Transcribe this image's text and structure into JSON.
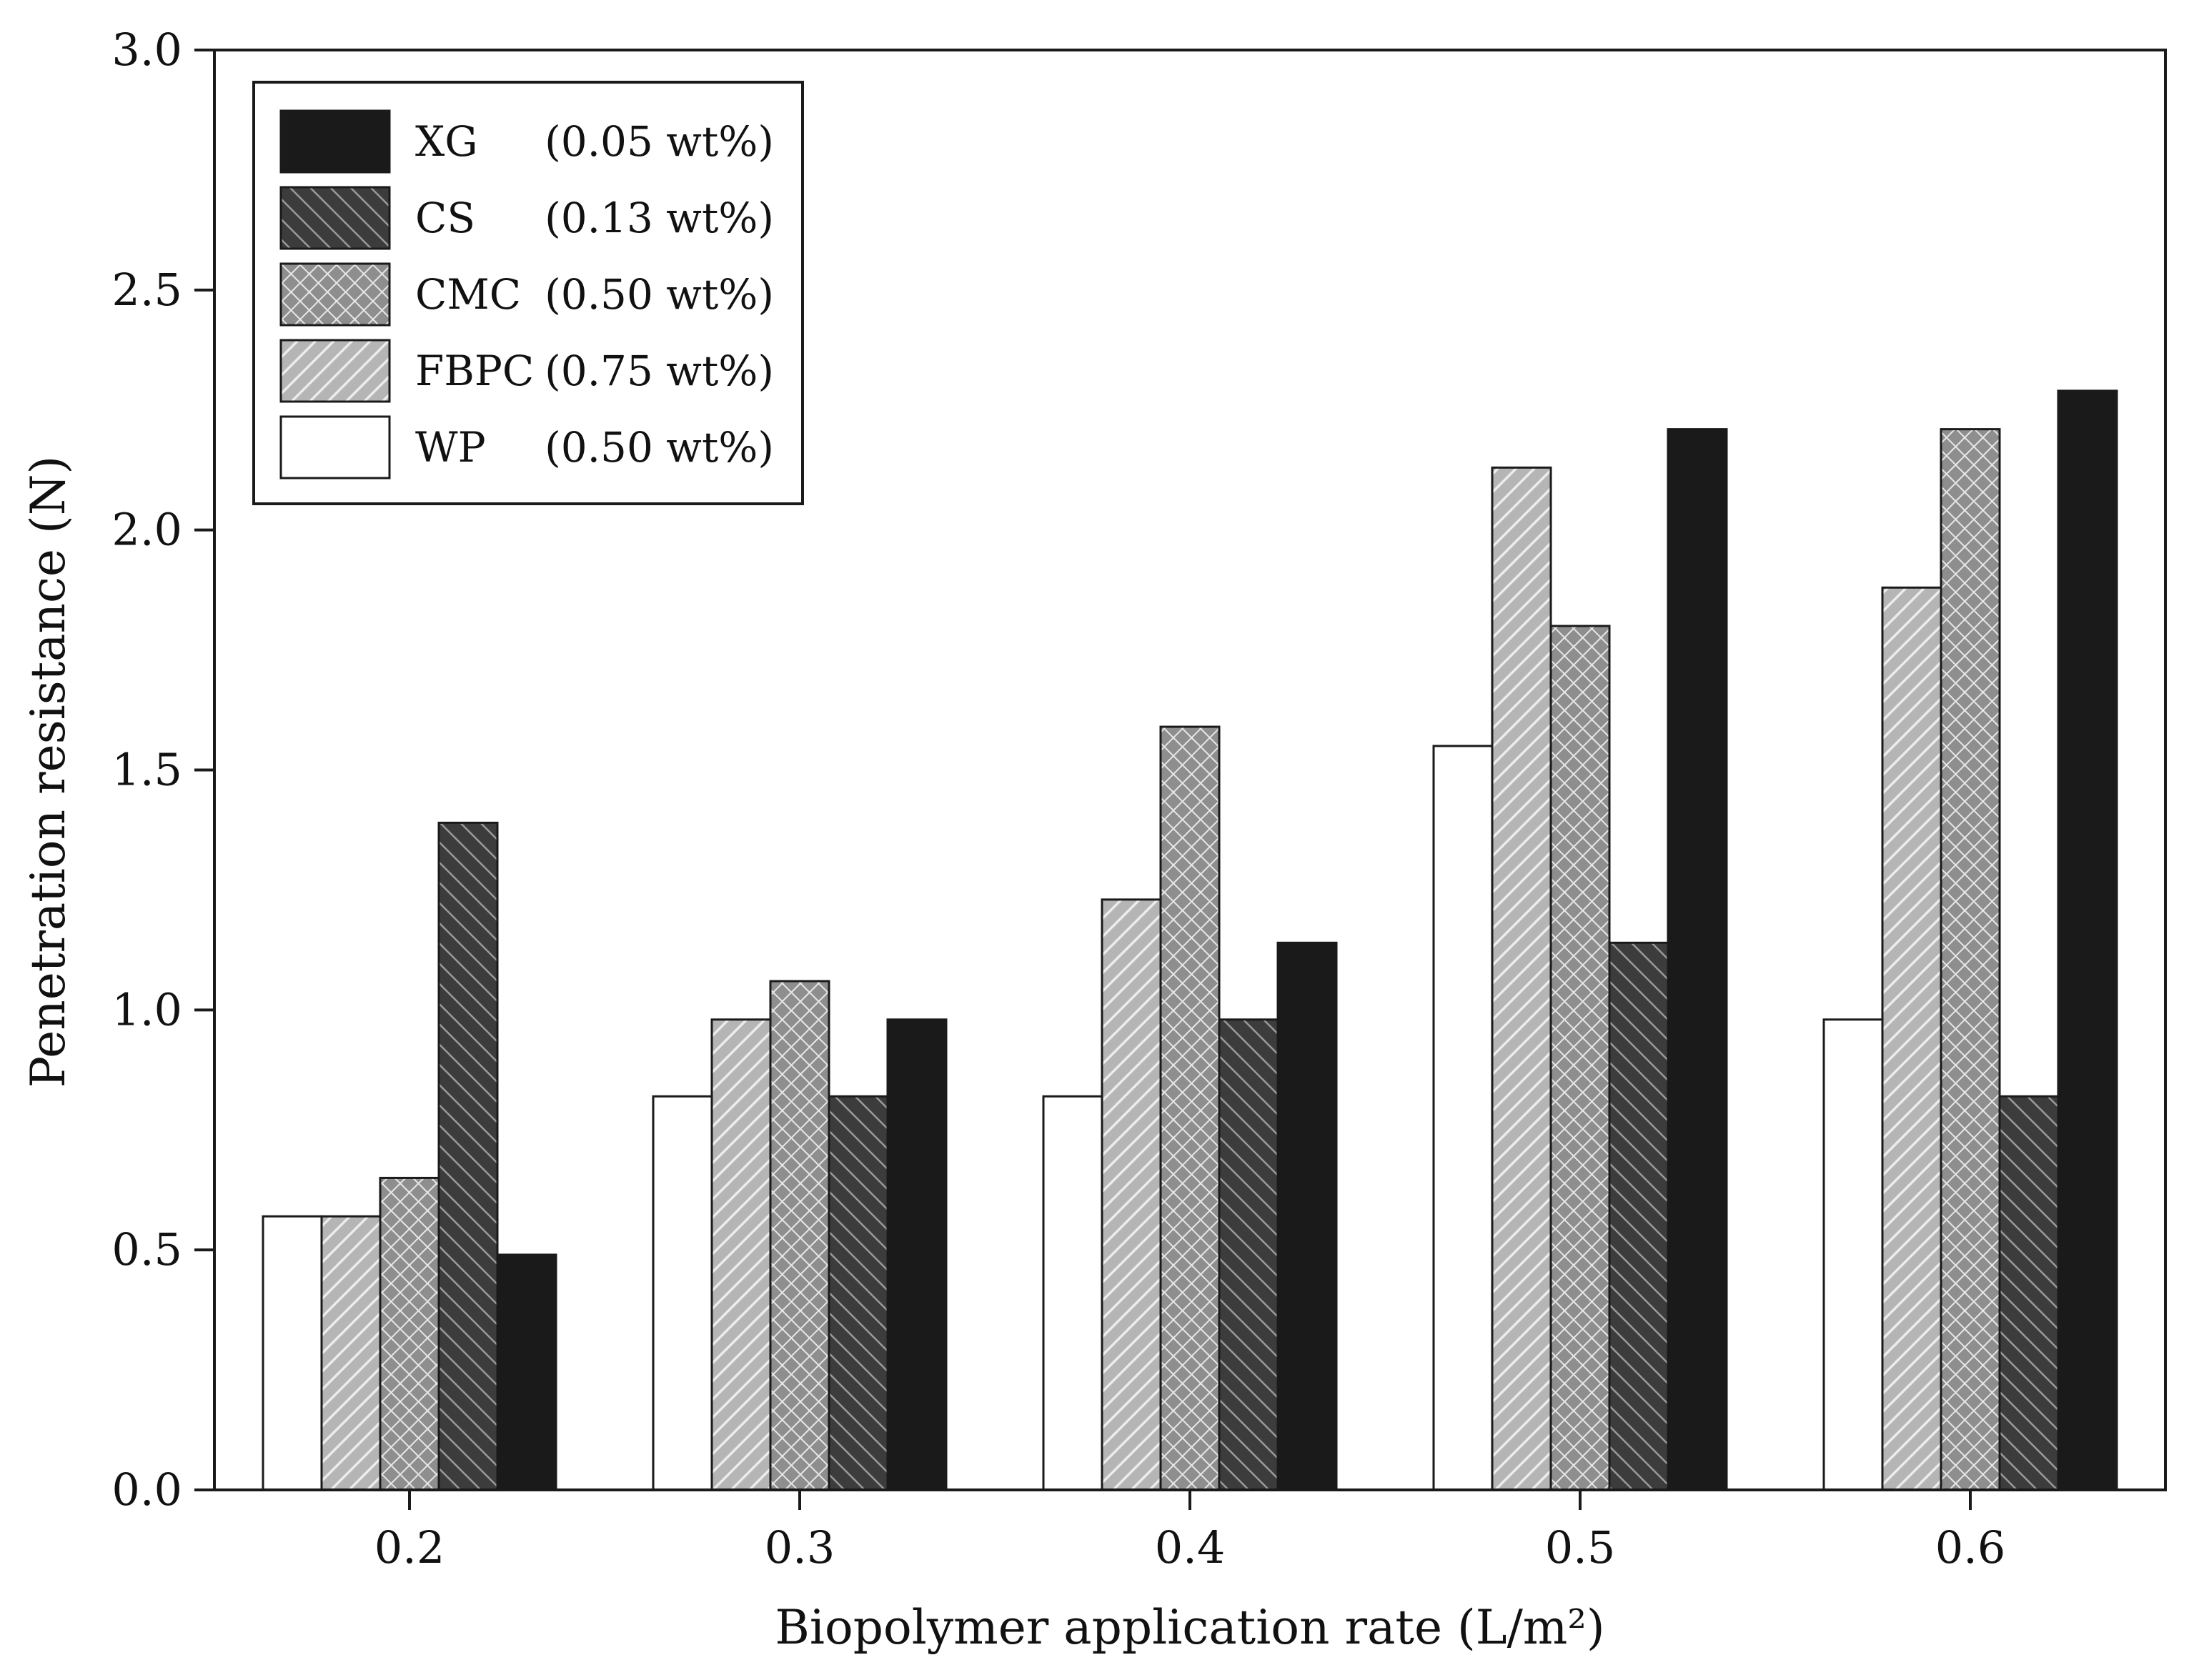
{
  "chart_data": {
    "type": "bar",
    "title": "",
    "xlabel": "Biopolymer application rate (L/m²)",
    "ylabel": "Penetration resistance (N)",
    "ylim": [
      0,
      3.0
    ],
    "yticks": [
      "0.0",
      "0.5",
      "1.0",
      "1.5",
      "2.0",
      "2.5",
      "3.0"
    ],
    "categories": [
      "0.2",
      "0.3",
      "0.4",
      "0.5",
      "0.6"
    ],
    "grid": false,
    "legend_position": "top-left",
    "series": [
      {
        "key": "WP",
        "name": "WP",
        "concentration": "(0.50 wt%)",
        "fill": "#ffffff",
        "pattern": "none",
        "values": [
          0.57,
          0.82,
          0.82,
          1.55,
          0.98
        ]
      },
      {
        "key": "FBPC",
        "name": "FBPC",
        "concentration": "(0.75 wt%)",
        "fill": "#b5b5b5",
        "pattern": "diagonal",
        "values": [
          0.57,
          0.98,
          1.23,
          2.13,
          1.88
        ]
      },
      {
        "key": "CMC",
        "name": "CMC",
        "concentration": "(0.50 wt%)",
        "fill": "#9a9a9a",
        "pattern": "cross",
        "values": [
          0.65,
          1.06,
          1.59,
          1.8,
          2.21
        ]
      },
      {
        "key": "CS",
        "name": "CS",
        "concentration": "(0.13 wt%)",
        "fill": "#4a4a4a",
        "pattern": "backdiag",
        "values": [
          1.39,
          0.82,
          0.98,
          1.14,
          0.82
        ]
      },
      {
        "key": "XG",
        "name": "XG",
        "concentration": "(0.05 wt%)",
        "fill": "#1a1a1a",
        "pattern": "none",
        "values": [
          0.49,
          0.98,
          1.14,
          2.21,
          2.29
        ]
      }
    ],
    "legend_order": [
      "XG",
      "CS",
      "CMC",
      "FBPC",
      "WP"
    ]
  }
}
